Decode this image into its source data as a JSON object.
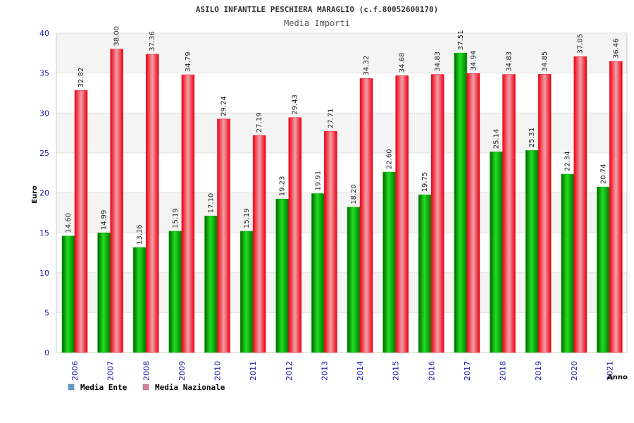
{
  "chart_data": {
    "type": "bar",
    "title": "ASILO INFANTILE PESCHIERA MARAGLIO (c.f.80052600170)",
    "subtitle": "Media Importi",
    "xlabel": "Anno",
    "ylabel": "Euro",
    "ylim": [
      0,
      40
    ],
    "yticks": [
      0,
      5,
      10,
      15,
      20,
      25,
      30,
      35,
      40
    ],
    "grid": true,
    "legend_position": "bottom-left",
    "categories": [
      "2006",
      "2007",
      "2008",
      "2009",
      "2010",
      "2011",
      "2012",
      "2013",
      "2014",
      "2015",
      "2016",
      "2017",
      "2018",
      "2019",
      "2020",
      "2021"
    ],
    "series": [
      {
        "name": "Media Ente",
        "color": "#00b000",
        "legend_color": "#5b9bd5",
        "values": [
          14.6,
          14.99,
          13.16,
          15.19,
          17.1,
          15.19,
          19.23,
          19.91,
          18.2,
          22.6,
          19.75,
          37.51,
          25.14,
          25.31,
          22.34,
          20.74
        ],
        "labels": [
          "14.60",
          "14.99",
          "13.16",
          "15.19",
          "17.10",
          "15.19",
          "19.23",
          "19.91",
          "18.20",
          "22.60",
          "19.75",
          "37.51",
          "25.14",
          "25.31",
          "22.34",
          "20.74"
        ]
      },
      {
        "name": "Media Nazionale",
        "color": "#ee1122",
        "legend_color": "#d77fa1",
        "values": [
          32.82,
          38.0,
          37.36,
          34.79,
          29.24,
          27.19,
          29.43,
          27.71,
          34.32,
          34.68,
          34.83,
          34.94,
          34.83,
          34.85,
          37.05,
          36.46
        ],
        "labels": [
          "32.82",
          "38.00",
          "37.36",
          "34.79",
          "29.24",
          "27.19",
          "29.43",
          "27.71",
          "34.32",
          "34.68",
          "34.83",
          "34.94",
          "34.83",
          "34.85",
          "37.05",
          "36.46"
        ]
      }
    ]
  }
}
